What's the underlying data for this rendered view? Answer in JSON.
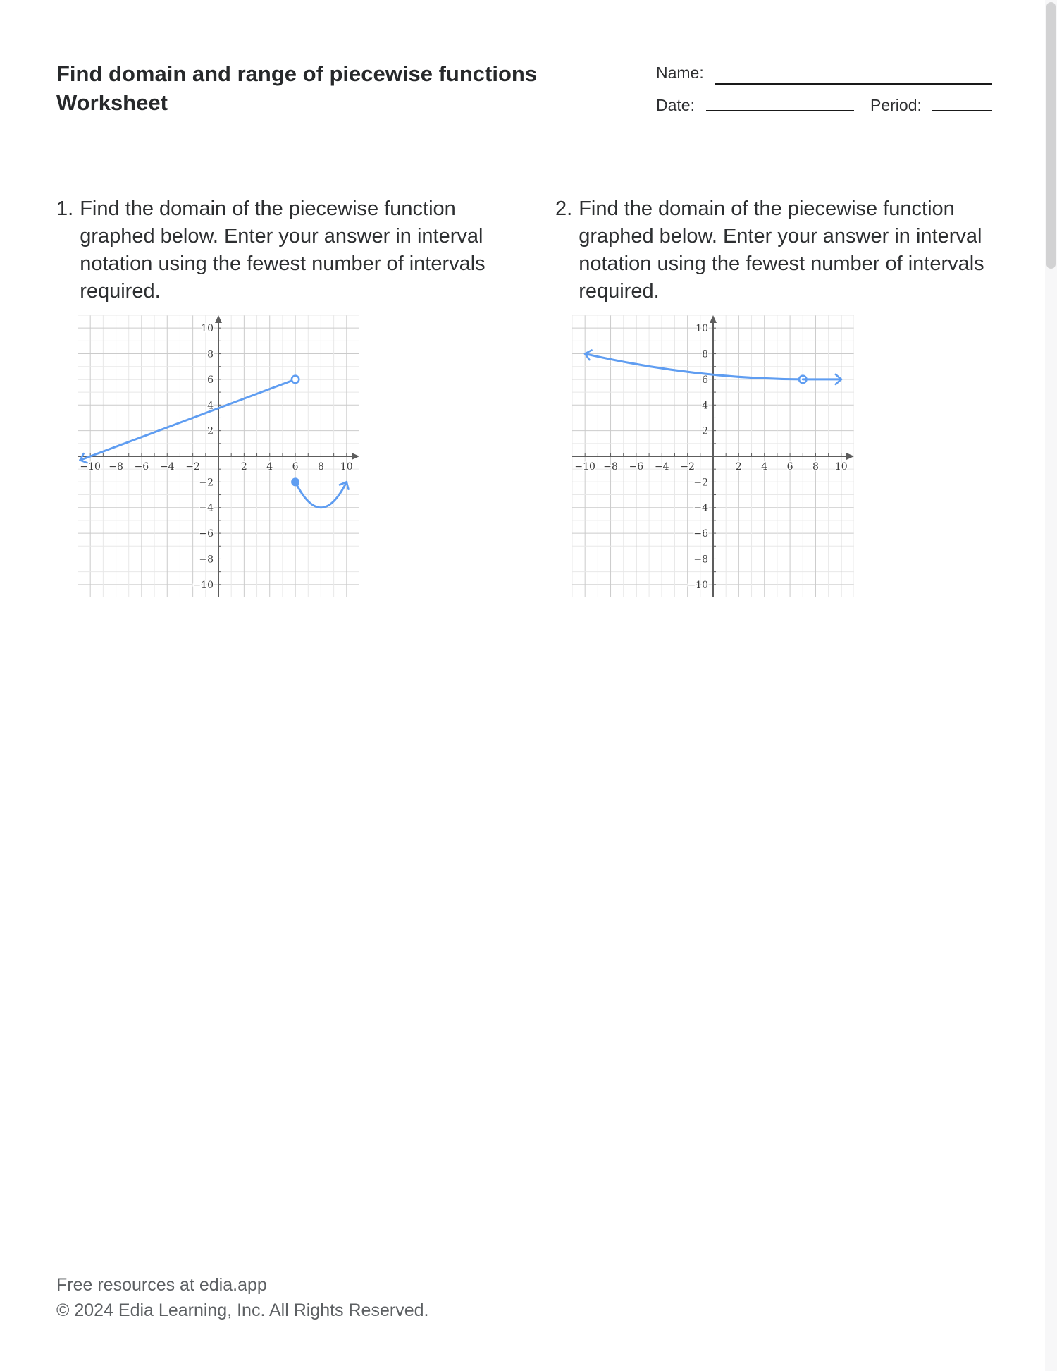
{
  "header": {
    "title_line1": "Find domain and range of piecewise functions",
    "title_line2": "Worksheet",
    "name_label": "Name:",
    "date_label": "Date:",
    "period_label": "Period:"
  },
  "problems": [
    {
      "number": "1.",
      "lines": [
        "Find the domain of the piecewise function",
        "graphed below. Enter your answer in interval",
        "notation using the fewest number of intervals",
        "required."
      ]
    },
    {
      "number": "2.",
      "lines": [
        "Find the domain of the piecewise function",
        "graphed below. Enter your answer in interval",
        "notation using the fewest number of intervals",
        "required."
      ]
    }
  ],
  "footer": {
    "line1": "Free resources at edia.app",
    "line2": "© 2024 Edia Learning, Inc. All Rights Reserved."
  },
  "colors": {
    "curve": "#5f9df1",
    "axis": "#5d5d5d",
    "grid_major": "#cbcbcb",
    "grid_minor": "#e8e8e8",
    "tick_label": "#3d3d3d",
    "endpoint_fill_open": "#ffffff"
  },
  "chart_data": [
    {
      "type": "line",
      "title": "Problem 1 piecewise function graph",
      "xlabel": "",
      "ylabel": "",
      "xlim": [
        -11,
        11
      ],
      "ylim": [
        -11,
        11
      ],
      "grid": "on",
      "tick_values": [
        -10,
        -8,
        -6,
        -4,
        -2,
        2,
        4,
        6,
        8,
        10
      ],
      "tick_labels": [
        "−10",
        "−8",
        "−6",
        "−4",
        "−2",
        "2",
        "4",
        "6",
        "8",
        "10"
      ],
      "pieces": [
        {
          "kind": "line",
          "desc": "Line y = 0.375x + 3.75 from open endpoint (6, 6) extending down-left past x = -10 with an arrow",
          "from": [
            6,
            6
          ],
          "to": [
            -10.8,
            -0.3
          ],
          "ctrl": null,
          "arrow_at_end": true,
          "dots": [
            {
              "x": 6,
              "y": 6,
              "style": "open"
            }
          ]
        },
        {
          "kind": "parabola",
          "desc": "Parabola from closed endpoint (6, -2) through vertex (8, -4) rising to an arrow at (10, -2)",
          "from": [
            6,
            -2
          ],
          "to": [
            10,
            -2
          ],
          "ctrl": [
            8,
            -6
          ],
          "arrow_at_end": true,
          "dots": [
            {
              "x": 6,
              "y": -2,
              "style": "closed"
            }
          ]
        }
      ]
    },
    {
      "type": "line",
      "title": "Problem 2 piecewise function graph",
      "xlabel": "",
      "ylabel": "",
      "xlim": [
        -11,
        11
      ],
      "ylim": [
        -11,
        11
      ],
      "grid": "on",
      "tick_values": [
        -10,
        -8,
        -6,
        -4,
        -2,
        2,
        4,
        6,
        8,
        10
      ],
      "tick_labels": [
        "−10",
        "−8",
        "−6",
        "−4",
        "−2",
        "2",
        "4",
        "6",
        "8",
        "10"
      ],
      "pieces": [
        {
          "kind": "curve",
          "desc": "Concave-up decreasing curve from open endpoint (7, 6) extending left to an arrow at (-10, 8)",
          "from": [
            7,
            6
          ],
          "to": [
            -10,
            8
          ],
          "ctrl": [
            -1.5,
            6.05
          ],
          "arrow_at_end": true,
          "dots": [
            {
              "x": 7,
              "y": 6,
              "style": "open"
            }
          ]
        },
        {
          "kind": "ray",
          "desc": "Horizontal ray y = 6 from (7, 6) rightward with an arrow at (10, 6)",
          "from": [
            7,
            6
          ],
          "to": [
            10,
            6
          ],
          "ctrl": null,
          "arrow_at_end": true,
          "dots": []
        }
      ]
    }
  ]
}
